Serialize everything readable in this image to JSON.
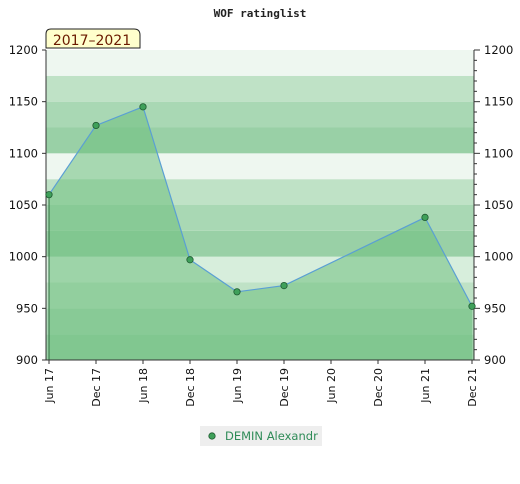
{
  "chart_data": {
    "type": "area",
    "title": "WOF ratinglist",
    "period_label": "2017–2021",
    "x": [
      "Jun 17",
      "Dec 17",
      "Jun 18",
      "Dec 18",
      "Jun 19",
      "Dec 19",
      "Jun 20",
      "Dec 20",
      "Jun 21",
      "Dec 21"
    ],
    "series": [
      {
        "name": "DEMIN Alexandr",
        "points": [
          {
            "x": "Jun 17",
            "y": 1060
          },
          {
            "x": "Dec 17",
            "y": 1127
          },
          {
            "x": "Jun 18",
            "y": 1145
          },
          {
            "x": "Dec 18",
            "y": 997
          },
          {
            "x": "Jun 19",
            "y": 966
          },
          {
            "x": "Dec 19",
            "y": 972
          },
          {
            "x": "Jun 21",
            "y": 1038
          },
          {
            "x": "Dec 21",
            "y": 952
          }
        ]
      }
    ],
    "ylim": [
      900,
      1200
    ],
    "yticks": [
      900,
      950,
      1000,
      1050,
      1100,
      1150,
      1200
    ],
    "grid": "horizontal bands",
    "legend_position": "bottom",
    "colors": {
      "line": "#5a9fd4",
      "area": "#6dbf7e",
      "marker": "#3fa05a",
      "legend_text": "#2e8b57",
      "period_badge_bg": "#ffffcc"
    }
  }
}
